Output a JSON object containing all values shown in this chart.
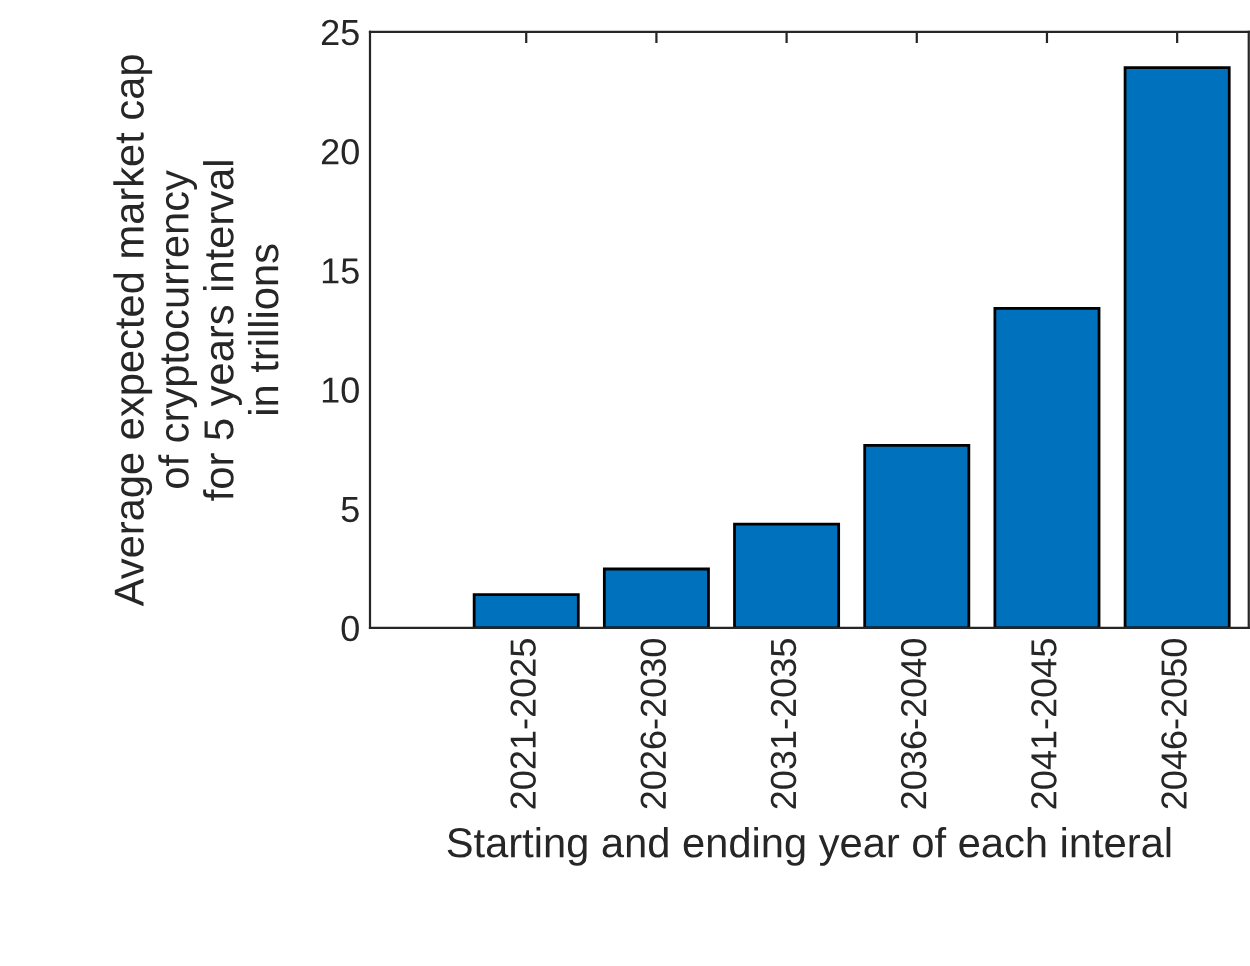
{
  "chart_data": {
    "type": "bar",
    "xlabel": "Starting and ending year of each interal",
    "ylabel": "Average expected market cap\nof cryptocurrency\nfor 5 years interval\nin trillions",
    "categories": [
      "2021-2025",
      "2026-2030",
      "2031-2035",
      "2036-2040",
      "2041-2045",
      "2046-2050"
    ],
    "values": [
      1.4,
      2.47,
      4.35,
      7.66,
      13.4,
      23.5
    ],
    "color": "#0072bd",
    "ylim": [
      0,
      25
    ],
    "yticks": [
      0,
      5,
      10,
      15,
      20,
      25
    ],
    "grid": false
  }
}
